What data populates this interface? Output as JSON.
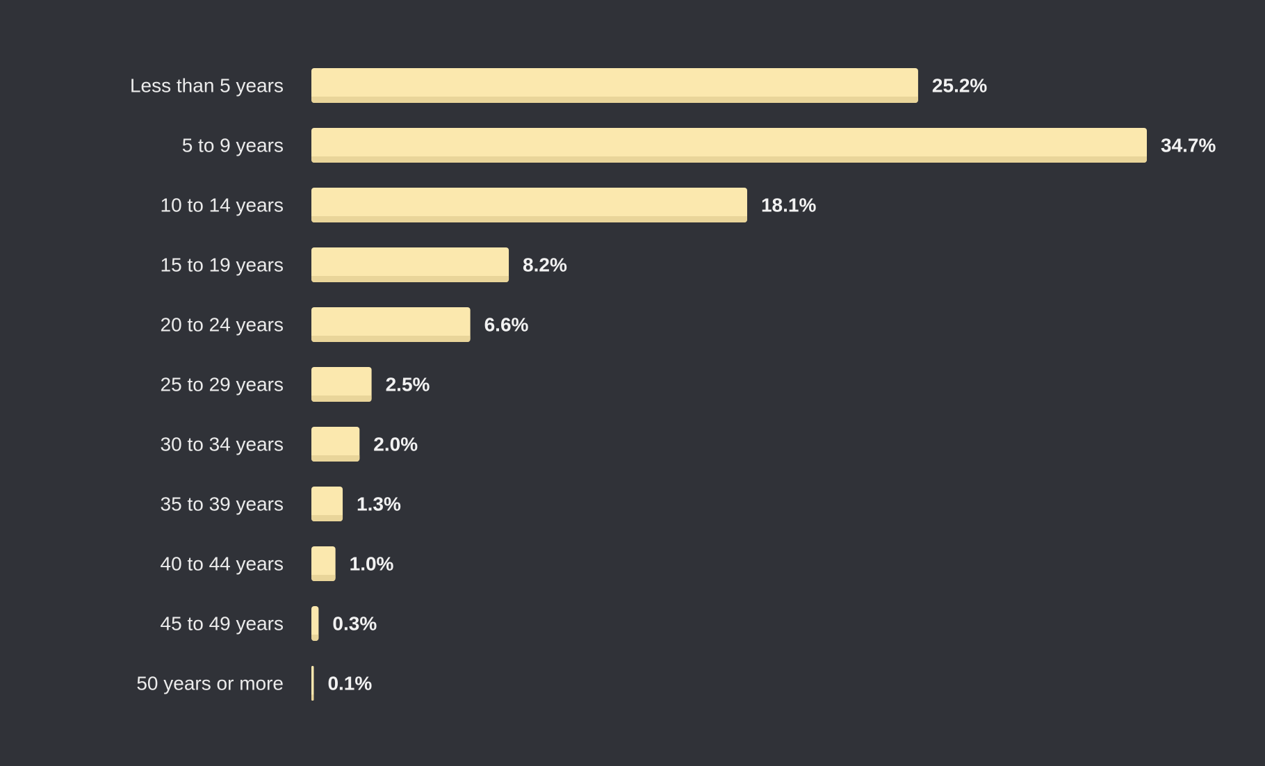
{
  "colors": {
    "background": "#303238",
    "bar": "#FBE8AE",
    "bar_shadow": "#E9D59A",
    "category_text": "#ECECEC",
    "value_text": "#F2F2F2"
  },
  "chart_data": {
    "type": "bar",
    "orientation": "horizontal",
    "title": "",
    "xlabel": "",
    "ylabel": "",
    "xlim": [
      0,
      34.7
    ],
    "grid": false,
    "legend": "none",
    "categories": [
      "Less than 5 years",
      "5 to 9 years",
      "10 to 14 years",
      "15 to 19 years",
      "20 to 24 years",
      "25 to 29 years",
      "30 to 34 years",
      "35 to 39 years",
      "40 to 44 years",
      "45 to 49 years",
      "50 years or more"
    ],
    "values": [
      25.2,
      34.7,
      18.1,
      8.2,
      6.6,
      2.5,
      2.0,
      1.3,
      1.0,
      0.3,
      0.1
    ],
    "value_labels": [
      "25.2%",
      "34.7%",
      "18.1%",
      "8.2%",
      "6.6%",
      "2.5%",
      "2.0%",
      "1.3%",
      "1.0%",
      "0.3%",
      "0.1%"
    ]
  }
}
